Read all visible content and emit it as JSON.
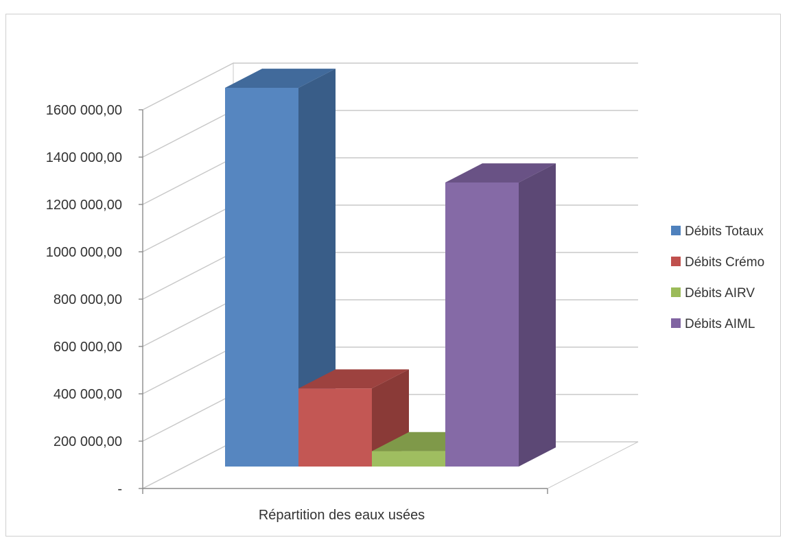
{
  "chart_data": {
    "type": "bar",
    "categories": [
      "Répartition des eaux usées"
    ],
    "series": [
      {
        "name": "Débits Totaux",
        "values": [
          1600000
        ]
      },
      {
        "name": "Débits Crémo",
        "values": [
          330000
        ]
      },
      {
        "name": "Débits AIRV",
        "values": [
          65000
        ]
      },
      {
        "name": "Débits AIML",
        "values": [
          1200000
        ]
      }
    ],
    "title": "",
    "xlabel": "",
    "ylabel": "",
    "ylim": [
      0,
      1600000
    ],
    "yticks": [
      0,
      200000,
      400000,
      600000,
      800000,
      1000000,
      1200000,
      1400000,
      1600000
    ],
    "ytick_labels": [
      "-",
      "200 000,00",
      "400 000,00",
      "600 000,00",
      "800 000,00",
      "1000 000,00",
      "1200 000,00",
      "1400 000,00",
      "1600 000,00"
    ],
    "grid": true,
    "style": "3d-columns",
    "legend_position": "right",
    "colors": [
      "#4f81bd",
      "#c0504d",
      "#9bbb59",
      "#8064a2"
    ]
  }
}
